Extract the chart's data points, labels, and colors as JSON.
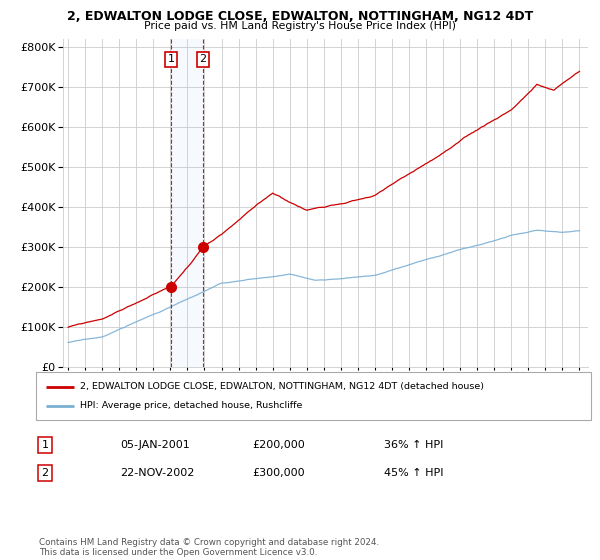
{
  "title1": "2, EDWALTON LODGE CLOSE, EDWALTON, NOTTINGHAM, NG12 4DT",
  "title2": "Price paid vs. HM Land Registry's House Price Index (HPI)",
  "legend_line1": "2, EDWALTON LODGE CLOSE, EDWALTON, NOTTINGHAM, NG12 4DT (detached house)",
  "legend_line2": "HPI: Average price, detached house, Rushcliffe",
  "footer": "Contains HM Land Registry data © Crown copyright and database right 2024.\nThis data is licensed under the Open Government Licence v3.0.",
  "sale1_label": "1",
  "sale1_date": "05-JAN-2001",
  "sale1_price": "£200,000",
  "sale1_hpi": "36% ↑ HPI",
  "sale1_year": 2001.04,
  "sale1_value": 200000,
  "sale2_label": "2",
  "sale2_date": "22-NOV-2002",
  "sale2_price": "£300,000",
  "sale2_hpi": "45% ↑ HPI",
  "sale2_year": 2002.9,
  "sale2_value": 300000,
  "red_color": "#cc0000",
  "blue_color": "#7aafd4",
  "vline_color": "#cc0000",
  "grid_color": "#cccccc",
  "background_color": "#ffffff",
  "ylim": [
    0,
    800000
  ],
  "yticks": [
    0,
    100000,
    200000,
    300000,
    400000,
    500000,
    600000,
    700000,
    800000
  ]
}
